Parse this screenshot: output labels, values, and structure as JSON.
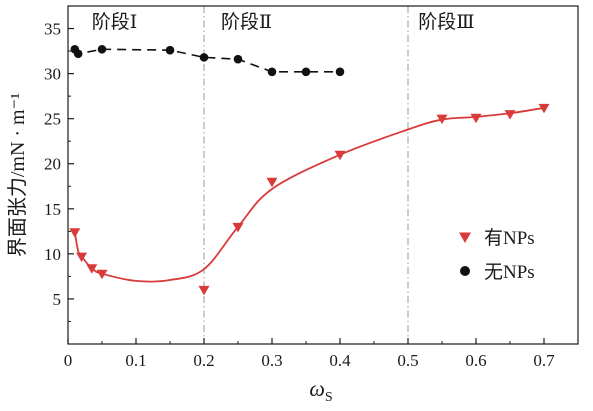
{
  "chart_data": {
    "type": "scatter",
    "xlabel": "ω",
    "xlabel_sub": "S",
    "ylabel": "界面张力/mN · m⁻¹",
    "xlim": [
      0,
      0.75
    ],
    "ylim": [
      0,
      37.5
    ],
    "x_ticks": [
      0,
      0.1,
      0.2,
      0.3,
      0.4,
      0.5,
      0.6,
      0.7
    ],
    "x_tick_labels": [
      "0",
      "0.1",
      "0.2",
      "0.3",
      "0.4",
      "0.5",
      "0.6",
      "0.7"
    ],
    "y_ticks": [
      5,
      10,
      15,
      20,
      25,
      30,
      35
    ],
    "y_tick_labels": [
      "5",
      "10",
      "15",
      "20",
      "25",
      "30",
      "35"
    ],
    "grid": false,
    "legend_position": "right",
    "stage_lines": [
      0.2,
      0.5
    ],
    "stage_labels": [
      {
        "text": "阶段Ⅰ",
        "x": 0.035
      },
      {
        "text": "阶段Ⅱ",
        "x": 0.225
      },
      {
        "text": "阶段Ⅲ",
        "x": 0.515
      }
    ],
    "series": [
      {
        "name": "有NPs",
        "marker": "triangle-down",
        "color": "#d93a3a",
        "line": "solid-smooth",
        "points": [
          [
            0.01,
            12.4
          ],
          [
            0.02,
            9.7
          ],
          [
            0.035,
            8.4
          ],
          [
            0.05,
            7.8
          ],
          [
            0.2,
            6.0
          ],
          [
            0.25,
            13.0
          ],
          [
            0.3,
            18.0
          ],
          [
            0.4,
            21.0
          ],
          [
            0.55,
            25.0
          ],
          [
            0.6,
            25.1
          ],
          [
            0.65,
            25.5
          ],
          [
            0.7,
            26.2
          ]
        ],
        "curve": [
          [
            0.01,
            12.4
          ],
          [
            0.015,
            10.3
          ],
          [
            0.02,
            9.7
          ],
          [
            0.035,
            8.4
          ],
          [
            0.05,
            7.8
          ],
          [
            0.1,
            7.0
          ],
          [
            0.15,
            7.1
          ],
          [
            0.2,
            8.3
          ],
          [
            0.25,
            13.0
          ],
          [
            0.3,
            17.2
          ],
          [
            0.4,
            21.0
          ],
          [
            0.5,
            23.8
          ],
          [
            0.55,
            24.9
          ],
          [
            0.6,
            25.2
          ],
          [
            0.65,
            25.6
          ],
          [
            0.7,
            26.2
          ]
        ]
      },
      {
        "name": "无NPs",
        "marker": "circle",
        "color": "#111111",
        "line": "dashed",
        "points": [
          [
            0.01,
            32.7
          ],
          [
            0.015,
            32.2
          ],
          [
            0.05,
            32.7
          ],
          [
            0.15,
            32.6
          ],
          [
            0.2,
            31.8
          ],
          [
            0.25,
            31.6
          ],
          [
            0.3,
            30.2
          ],
          [
            0.35,
            30.2
          ],
          [
            0.4,
            30.2
          ]
        ]
      }
    ]
  }
}
